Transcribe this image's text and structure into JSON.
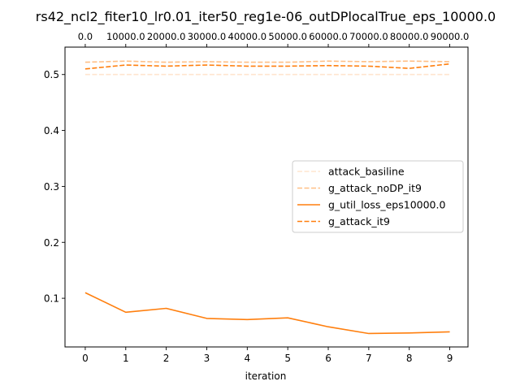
{
  "chart_data": {
    "type": "line",
    "title": "rs42_ncl2_fiter10_lr0.01_iter50_reg1e-06_outDPlocalTrue_eps_10000.0",
    "xlabel": "iteration",
    "ylabel": "",
    "x": [
      0,
      1,
      2,
      3,
      4,
      5,
      6,
      7,
      8,
      9
    ],
    "xlim": [
      -0.5,
      9.45
    ],
    "ylim": [
      0.013,
      0.549
    ],
    "x_ticks": [
      0,
      1,
      2,
      3,
      4,
      5,
      6,
      7,
      8,
      9
    ],
    "y_ticks": [
      0.1,
      0.2,
      0.3,
      0.4,
      0.5
    ],
    "y_tick_labels": [
      "0.1",
      "0.2",
      "0.3",
      "0.4",
      "0.5"
    ],
    "top_axis": {
      "ticks": [
        0,
        1,
        2,
        3,
        4,
        5,
        6,
        7,
        8,
        9
      ],
      "labels": [
        "0.0",
        "10000.0",
        "20000.0",
        "30000.0",
        "40000.0",
        "50000.0",
        "60000.0",
        "70000.0",
        "80000.0",
        "90000.0"
      ]
    },
    "grid": false,
    "legend_position": "center-right",
    "series": [
      {
        "name": "attack_basiline",
        "values": [
          0.5,
          0.5,
          0.5,
          0.5,
          0.5,
          0.5,
          0.5,
          0.5,
          0.5,
          0.5
        ],
        "color": "#ff7f0e",
        "opacity": 0.2,
        "dash": "dashed"
      },
      {
        "name": "g_attack_noDP_it9",
        "values": [
          0.522,
          0.524,
          0.522,
          0.523,
          0.522,
          0.522,
          0.524,
          0.523,
          0.524,
          0.523
        ],
        "color": "#ff7f0e",
        "opacity": 0.5,
        "dash": "dashed"
      },
      {
        "name": "g_util_loss_eps10000.0",
        "values": [
          0.11,
          0.075,
          0.082,
          0.064,
          0.062,
          0.065,
          0.049,
          0.037,
          0.038,
          0.04
        ],
        "color": "#ff7f0e",
        "opacity": 1,
        "dash": "solid"
      },
      {
        "name": "g_attack_it9",
        "values": [
          0.51,
          0.517,
          0.515,
          0.517,
          0.515,
          0.515,
          0.516,
          0.515,
          0.511,
          0.519
        ],
        "color": "#ff7f0e",
        "opacity": 1,
        "dash": "dashed"
      }
    ]
  }
}
